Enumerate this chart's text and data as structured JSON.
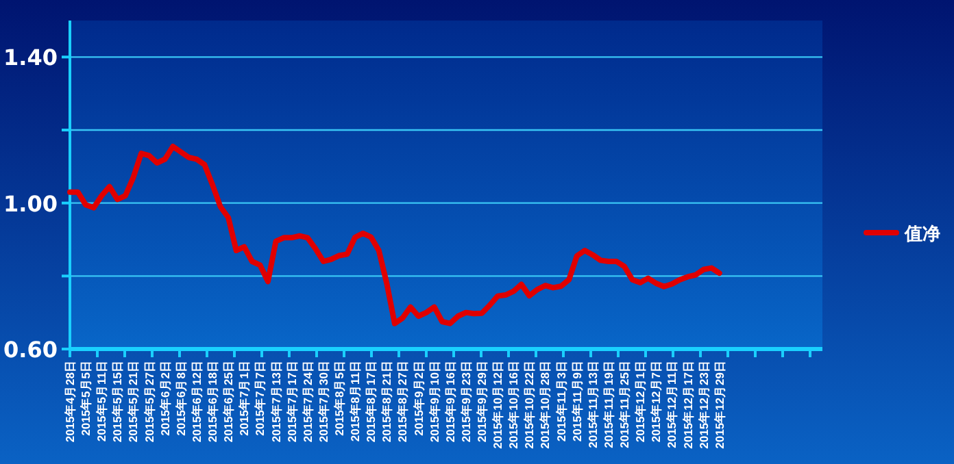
{
  "chart_data": {
    "type": "line",
    "categories": [
      "2015年4月28日",
      null,
      "2015年5月5日",
      null,
      "2015年5月11日",
      null,
      "2015年5月15日",
      null,
      "2015年5月21日",
      null,
      "2015年5月27日",
      null,
      "2015年6月2日",
      null,
      "2015年6月8日",
      null,
      "2015年6月12日",
      null,
      "2015年6月18日",
      null,
      "2015年6月25日",
      null,
      "2015年7月1日",
      null,
      "2015年7月7日",
      null,
      "2015年7月13日",
      null,
      "2015年7月17日",
      null,
      "2015年7月24日",
      null,
      "2015年7月30日",
      null,
      "2015年8月5日",
      null,
      "2015年8月11日",
      null,
      "2015年8月17日",
      null,
      "2015年8月21日",
      null,
      "2015年8月27日",
      null,
      "2015年9月2日",
      null,
      "2015年9月10日",
      null,
      "2015年9月16日",
      null,
      "2015年9月23日",
      null,
      "2015年9月29日",
      null,
      "2015年10月12日",
      null,
      "2015年10月16日",
      null,
      "2015年10月22日",
      null,
      "2015年10月28日",
      null,
      "2015年11月3日",
      null,
      "2015年11月9日",
      null,
      "2015年11月13日",
      null,
      "2015年11月19日",
      null,
      "2015年11月25日",
      null,
      "2015年12月1日",
      null,
      "2015年12月7日",
      null,
      "2015年12月11日",
      null,
      "2015年12月17日",
      null,
      "2015年12月23日",
      null,
      "2015年12月29日",
      null,
      null,
      null,
      null,
      null,
      null,
      null,
      null,
      null,
      null,
      null,
      null,
      null
    ],
    "series": [
      {
        "name": "值净",
        "color": "#e00000",
        "values": [
          1.03,
          1.03,
          0.995,
          0.987,
          1.02,
          1.045,
          1.01,
          1.02,
          1.07,
          1.136,
          1.13,
          1.11,
          1.12,
          1.155,
          1.14,
          1.125,
          1.12,
          1.105,
          1.05,
          0.99,
          0.96,
          0.87,
          0.88,
          0.84,
          0.83,
          0.785,
          0.895,
          0.905,
          0.905,
          0.91,
          0.905,
          0.875,
          0.84,
          0.846,
          0.856,
          0.86,
          0.906,
          0.917,
          0.907,
          0.87,
          0.78,
          0.67,
          0.685,
          0.715,
          0.69,
          0.7,
          0.715,
          0.675,
          0.67,
          0.69,
          0.7,
          0.697,
          0.698,
          0.72,
          0.745,
          0.748,
          0.758,
          0.777,
          0.746,
          0.763,
          0.774,
          0.768,
          0.772,
          0.79,
          0.855,
          0.87,
          0.858,
          0.843,
          0.84,
          0.84,
          0.826,
          0.79,
          0.782,
          0.794,
          0.78,
          0.771,
          0.778,
          0.79,
          0.798,
          0.803,
          0.818,
          0.822,
          0.808,
          null,
          null,
          null,
          null,
          null,
          null,
          null,
          null,
          null,
          null,
          null,
          null,
          null
        ]
      }
    ],
    "ylim": [
      0.6,
      1.5
    ],
    "yticks": [
      {
        "value": 0.6,
        "label": "0.60"
      },
      {
        "value": 0.8,
        "label": null
      },
      {
        "value": 1.0,
        "label": "1.00"
      },
      {
        "value": 1.2,
        "label": null
      },
      {
        "value": 1.4,
        "label": "1.40"
      }
    ],
    "grid": "y",
    "legend": "right"
  }
}
